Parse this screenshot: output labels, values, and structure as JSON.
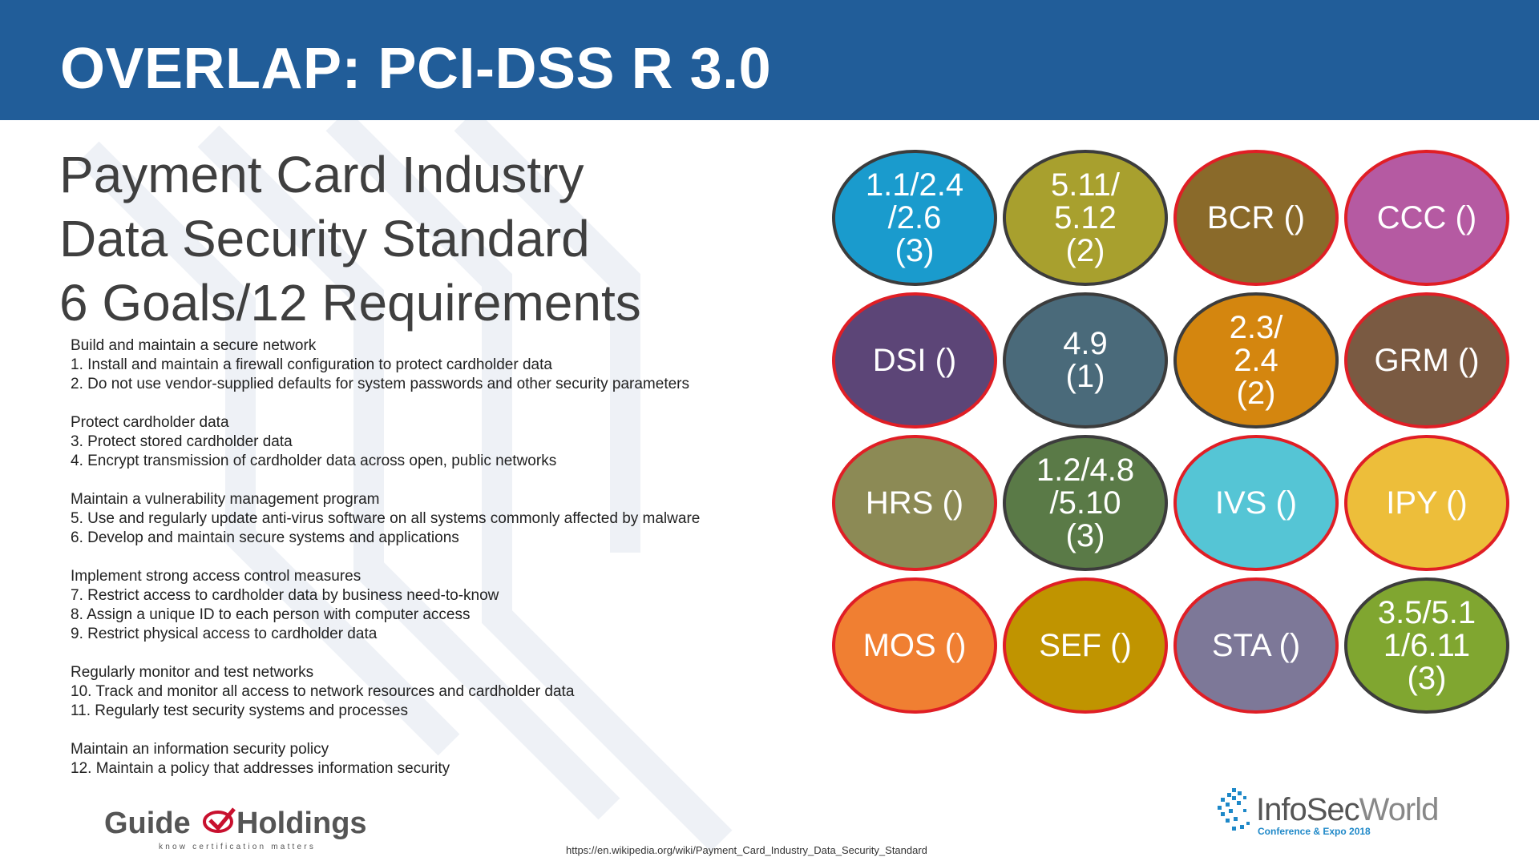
{
  "header": {
    "title": "OVERLAP: PCI-DSS R 3.0"
  },
  "subtitle": [
    "Payment Card Industry",
    "Data Security Standard",
    "6 Goals/12 Requirements"
  ],
  "requirement_groups": [
    {
      "lines": [
        "Build and maintain a secure network",
        "1. Install and maintain a firewall configuration to protect cardholder data",
        "2. Do not use vendor-supplied defaults for system passwords and other security parameters"
      ]
    },
    {
      "lines": [
        "Protect cardholder data",
        "3. Protect stored cardholder data",
        "4. Encrypt transmission of cardholder data across open, public networks"
      ]
    },
    {
      "lines": [
        "Maintain a vulnerability management program",
        "5. Use and regularly update anti-virus software on all systems commonly affected by malware",
        "6. Develop and maintain secure systems and applications"
      ]
    },
    {
      "lines": [
        "Implement strong access control measures",
        "7. Restrict access to cardholder data by business need-to-know",
        "8. Assign a unique ID to each person with computer access",
        "9. Restrict physical access to cardholder data"
      ]
    },
    {
      "lines": [
        "Regularly monitor and test networks",
        "10. Track and monitor all access to network resources and cardholder data",
        "11. Regularly test security systems and processes"
      ]
    },
    {
      "lines": [
        "Maintain an information security policy",
        "12. Maintain a policy that addresses information security"
      ]
    }
  ],
  "circles": [
    {
      "label": "1.1/2.4\n/2.6\n(3)",
      "color": "#1A9BCD",
      "border": "gray"
    },
    {
      "label": "5.11/\n5.12\n(2)",
      "color": "#A8A02E",
      "border": "gray"
    },
    {
      "label": "BCR ()",
      "color": "#8A6A2A",
      "border": "red"
    },
    {
      "label": "CCC ()",
      "color": "#B55AA2",
      "border": "red"
    },
    {
      "label": "DSI ()",
      "color": "#5C4577",
      "border": "red"
    },
    {
      "label": "4.9\n(1)",
      "color": "#4A6A7A",
      "border": "gray"
    },
    {
      "label": "2.3/\n2.4\n(2)",
      "color": "#D4860F",
      "border": "gray"
    },
    {
      "label": "GRM ()",
      "color": "#7A5A42",
      "border": "red"
    },
    {
      "label": "HRS ()",
      "color": "#8C8A55",
      "border": "red"
    },
    {
      "label": "1.2/4.8\n/5.10\n(3)",
      "color": "#5A7A47",
      "border": "gray"
    },
    {
      "label": "IVS ()",
      "color": "#55C5D5",
      "border": "red"
    },
    {
      "label": "IPY ()",
      "color": "#EDBE3A",
      "border": "red"
    },
    {
      "label": "MOS ()",
      "color": "#F07F32",
      "border": "red"
    },
    {
      "label": "SEF ()",
      "color": "#C09400",
      "border": "red"
    },
    {
      "label": "STA ()",
      "color": "#7D7898",
      "border": "red"
    },
    {
      "label": "3.5/5.1\n1/6.11\n(3)",
      "color": "#80A630",
      "border": "gray"
    }
  ],
  "logos": {
    "guide": {
      "wordmark_left": "Guide",
      "wordmark_right": "Holdings",
      "tagline": "know certification matters"
    },
    "infosecworld": {
      "wordmark_bold": "InfoSec",
      "wordmark_light": "World",
      "tagline": "Conference & Expo 2018"
    }
  },
  "source_url": "https://en.wikipedia.org/wiki/Payment_Card_Industry_Data_Security_Standard"
}
